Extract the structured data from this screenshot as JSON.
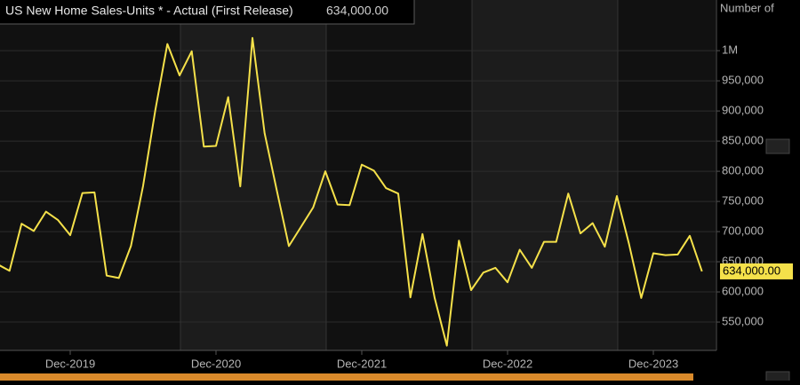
{
  "chart_data": {
    "type": "line",
    "title": "US New Home Sales-Units * - Actual (First Release)",
    "y_axis_label": "Number of",
    "categories": [
      null,
      null,
      null,
      null,
      null,
      null,
      "Dec-2019",
      null,
      null,
      null,
      null,
      null,
      null,
      null,
      null,
      null,
      null,
      null,
      "Dec-2020",
      null,
      null,
      null,
      null,
      null,
      null,
      null,
      null,
      null,
      null,
      null,
      "Dec-2021",
      null,
      null,
      null,
      null,
      null,
      null,
      null,
      null,
      null,
      null,
      null,
      "Dec-2022",
      null,
      null,
      null,
      null,
      null,
      null,
      null,
      null,
      null,
      null,
      null,
      "Dec-2023",
      null,
      null,
      null,
      null
    ],
    "series": [
      {
        "name": "US New Home Sales-Units * - Actual (First Release)",
        "color": "#f5e14a",
        "values": [
          646000,
          635000,
          713000,
          701000,
          733000,
          719000,
          694000,
          764000,
          765000,
          627000,
          623000,
          676000,
          776000,
          901000,
          1011000,
          959000,
          999000,
          841000,
          842000,
          923000,
          775000,
          1021000,
          863000,
          769000,
          676000,
          708000,
          740000,
          800000,
          745000,
          744000,
          811000,
          801000,
          772000,
          763000,
          591000,
          696000,
          590000,
          511000,
          685000,
          603000,
          632000,
          640000,
          616000,
          670000,
          640000,
          683000,
          683000,
          763000,
          697000,
          714000,
          675000,
          759000,
          679000,
          590000,
          664000,
          661000,
          662000,
          693000,
          634000
        ],
        "value_labels": [
          null,
          null,
          null,
          null,
          null,
          null,
          null,
          null,
          null,
          null,
          null,
          null,
          null,
          null,
          null,
          null,
          null,
          null,
          null,
          null,
          null,
          null,
          null,
          null,
          null,
          null,
          null,
          null,
          null,
          null,
          null,
          null,
          null,
          null,
          null,
          null,
          null,
          null,
          null,
          null,
          null,
          null,
          null,
          null,
          null,
          null,
          null,
          null,
          null,
          null,
          null,
          null,
          null,
          null,
          null,
          null,
          null,
          null,
          "634,000.00"
        ]
      }
    ],
    "ylim": [
      503000,
      1084000
    ],
    "yticks": [
      {
        "value": 550000,
        "label": "550,000"
      },
      {
        "value": 600000,
        "label": "600,000"
      },
      {
        "value": 650000,
        "label": "650,000"
      },
      {
        "value": 700000,
        "label": "700,000"
      },
      {
        "value": 750000,
        "label": "750,000"
      },
      {
        "value": 800000,
        "label": "800,000"
      },
      {
        "value": 850000,
        "label": "850,000"
      },
      {
        "value": 900000,
        "label": "900,000"
      },
      {
        "value": 950000,
        "label": "950,000"
      },
      {
        "value": 1000000,
        "label": "1M"
      }
    ],
    "grid": true
  }
}
